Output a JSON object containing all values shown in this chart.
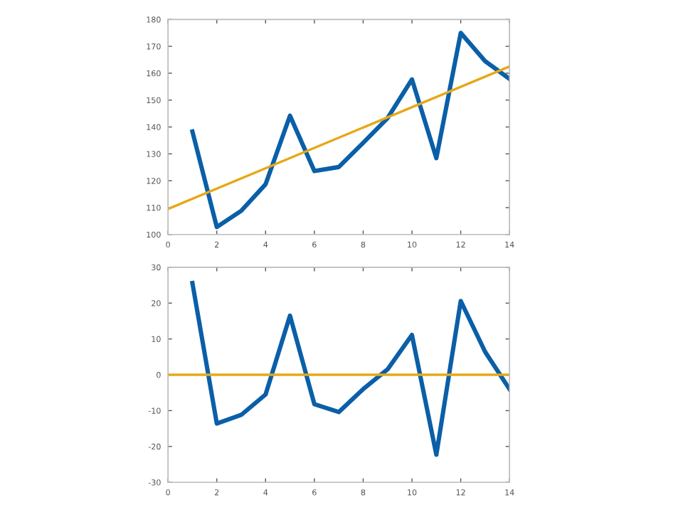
{
  "chart_data": [
    {
      "type": "line",
      "x": [
        1,
        2,
        3,
        4,
        5,
        6,
        7,
        8,
        9,
        10,
        11,
        12,
        13,
        14
      ],
      "xlim": [
        0,
        14
      ],
      "xticks": [
        0,
        2,
        4,
        6,
        8,
        10,
        12,
        14
      ],
      "ylim": [
        100,
        180
      ],
      "yticks": [
        100,
        110,
        120,
        130,
        140,
        150,
        160,
        170,
        180
      ],
      "grid": false,
      "legend": false,
      "series": [
        {
          "color": "#0a5fa8",
          "values": [
            138.3,
            102.8,
            108.8,
            118.7,
            144.2,
            123.6,
            125.1,
            134.1,
            143.3,
            157.7,
            128.4,
            175,
            164.5,
            157.9
          ]
        },
        {
          "color": "#e6a817",
          "x": [
            0,
            14
          ],
          "values": [
            109.5,
            162.5
          ]
        }
      ]
    },
    {
      "type": "line",
      "x": [
        1,
        2,
        3,
        4,
        5,
        6,
        7,
        8,
        9,
        10,
        11,
        12,
        13,
        14
      ],
      "xlim": [
        0,
        14
      ],
      "xticks": [
        0,
        2,
        4,
        6,
        8,
        10,
        12,
        14
      ],
      "ylim": [
        -30,
        30
      ],
      "yticks": [
        -30,
        -20,
        -10,
        0,
        10,
        20,
        30
      ],
      "grid": false,
      "legend": false,
      "series": [
        {
          "color": "#0a5fa8",
          "values": [
            25.6,
            -13.6,
            -11.2,
            -5.5,
            16.5,
            -8.2,
            -10.4,
            -4,
            1.5,
            11.1,
            -22.3,
            20.6,
            6.4,
            -4
          ]
        }
      ],
      "ref_lines": [
        {
          "axis": "y",
          "value": 0,
          "color": "#e6a817"
        }
      ]
    }
  ]
}
